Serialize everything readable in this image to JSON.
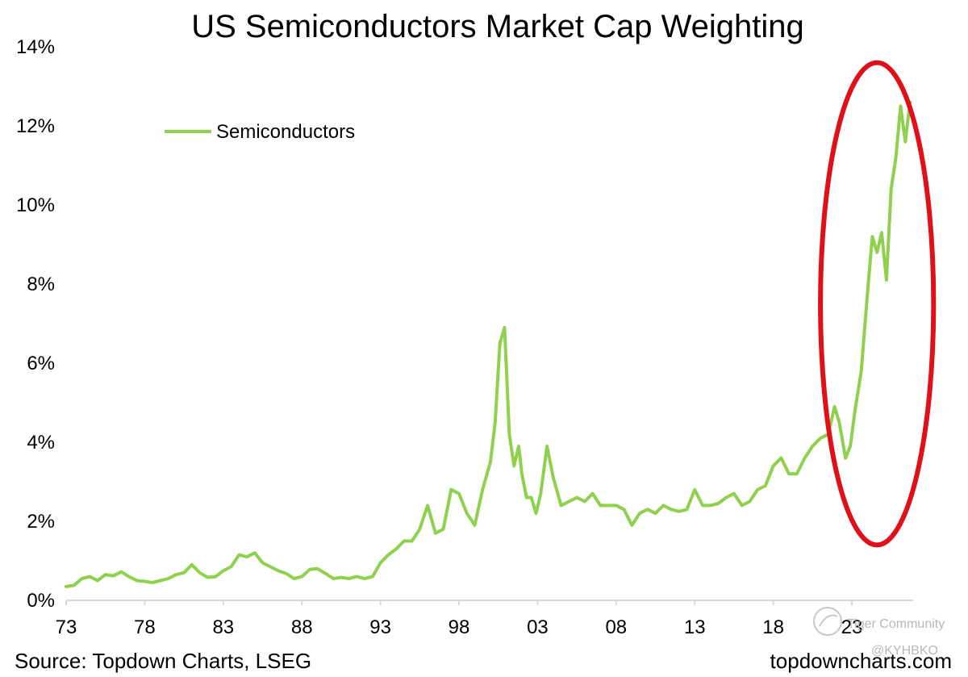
{
  "chart_data": {
    "type": "line",
    "title": "US Semiconductors Market Cap Weighting",
    "xlabel": "",
    "ylabel": "",
    "x_tick_labels": [
      "73",
      "78",
      "83",
      "88",
      "93",
      "98",
      "03",
      "08",
      "13",
      "18",
      "23"
    ],
    "x_tick_years": [
      1973,
      1978,
      1983,
      1988,
      1993,
      1998,
      2003,
      2008,
      2013,
      2018,
      2023
    ],
    "xlim": [
      1973,
      2026.9
    ],
    "y_tick_labels": [
      "0%",
      "2%",
      "4%",
      "6%",
      "8%",
      "10%",
      "12%",
      "14%"
    ],
    "y_tick_values": [
      0,
      2,
      4,
      6,
      8,
      10,
      12,
      14
    ],
    "ylim": [
      0,
      14
    ],
    "grid": false,
    "legend_position": "top-left",
    "series": [
      {
        "name": "Semiconductors",
        "color": "#8fd14f",
        "points": [
          [
            1973.0,
            0.35
          ],
          [
            1973.5,
            0.38
          ],
          [
            1974.0,
            0.55
          ],
          [
            1974.5,
            0.6
          ],
          [
            1975.0,
            0.5
          ],
          [
            1975.5,
            0.65
          ],
          [
            1976.0,
            0.62
          ],
          [
            1976.5,
            0.72
          ],
          [
            1977.0,
            0.6
          ],
          [
            1977.5,
            0.5
          ],
          [
            1978.0,
            0.48
          ],
          [
            1978.5,
            0.45
          ],
          [
            1979.0,
            0.5
          ],
          [
            1979.5,
            0.55
          ],
          [
            1980.0,
            0.65
          ],
          [
            1980.5,
            0.7
          ],
          [
            1981.0,
            0.9
          ],
          [
            1981.5,
            0.7
          ],
          [
            1982.0,
            0.58
          ],
          [
            1982.5,
            0.6
          ],
          [
            1983.0,
            0.75
          ],
          [
            1983.5,
            0.85
          ],
          [
            1984.0,
            1.15
          ],
          [
            1984.5,
            1.1
          ],
          [
            1985.0,
            1.2
          ],
          [
            1985.5,
            0.95
          ],
          [
            1986.0,
            0.85
          ],
          [
            1986.5,
            0.75
          ],
          [
            1987.0,
            0.68
          ],
          [
            1987.5,
            0.55
          ],
          [
            1988.0,
            0.6
          ],
          [
            1988.5,
            0.78
          ],
          [
            1989.0,
            0.8
          ],
          [
            1989.5,
            0.68
          ],
          [
            1990.0,
            0.55
          ],
          [
            1990.5,
            0.58
          ],
          [
            1991.0,
            0.55
          ],
          [
            1991.5,
            0.6
          ],
          [
            1992.0,
            0.55
          ],
          [
            1992.5,
            0.6
          ],
          [
            1993.0,
            0.95
          ],
          [
            1993.5,
            1.15
          ],
          [
            1994.0,
            1.3
          ],
          [
            1994.5,
            1.5
          ],
          [
            1995.0,
            1.5
          ],
          [
            1995.5,
            1.8
          ],
          [
            1996.0,
            2.4
          ],
          [
            1996.5,
            1.7
          ],
          [
            1997.0,
            1.8
          ],
          [
            1997.5,
            2.8
          ],
          [
            1998.0,
            2.7
          ],
          [
            1998.5,
            2.2
          ],
          [
            1999.0,
            1.9
          ],
          [
            1999.5,
            2.8
          ],
          [
            2000.0,
            3.5
          ],
          [
            2000.3,
            4.5
          ],
          [
            2000.6,
            6.5
          ],
          [
            2000.9,
            6.9
          ],
          [
            2001.2,
            4.2
          ],
          [
            2001.5,
            3.4
          ],
          [
            2001.8,
            3.9
          ],
          [
            2002.0,
            3.2
          ],
          [
            2002.3,
            2.6
          ],
          [
            2002.6,
            2.6
          ],
          [
            2002.9,
            2.2
          ],
          [
            2003.2,
            2.7
          ],
          [
            2003.6,
            3.9
          ],
          [
            2004.0,
            3.1
          ],
          [
            2004.5,
            2.4
          ],
          [
            2005.0,
            2.5
          ],
          [
            2005.5,
            2.6
          ],
          [
            2006.0,
            2.5
          ],
          [
            2006.5,
            2.7
          ],
          [
            2007.0,
            2.4
          ],
          [
            2007.5,
            2.4
          ],
          [
            2008.0,
            2.4
          ],
          [
            2008.5,
            2.3
          ],
          [
            2009.0,
            1.9
          ],
          [
            2009.5,
            2.2
          ],
          [
            2010.0,
            2.3
          ],
          [
            2010.5,
            2.2
          ],
          [
            2011.0,
            2.4
          ],
          [
            2011.5,
            2.3
          ],
          [
            2012.0,
            2.25
          ],
          [
            2012.5,
            2.3
          ],
          [
            2013.0,
            2.8
          ],
          [
            2013.5,
            2.4
          ],
          [
            2014.0,
            2.4
          ],
          [
            2014.5,
            2.45
          ],
          [
            2015.0,
            2.6
          ],
          [
            2015.5,
            2.7
          ],
          [
            2016.0,
            2.4
          ],
          [
            2016.5,
            2.5
          ],
          [
            2017.0,
            2.8
          ],
          [
            2017.5,
            2.9
          ],
          [
            2018.0,
            3.4
          ],
          [
            2018.5,
            3.6
          ],
          [
            2019.0,
            3.2
          ],
          [
            2019.5,
            3.2
          ],
          [
            2020.0,
            3.6
          ],
          [
            2020.5,
            3.9
          ],
          [
            2021.0,
            4.1
          ],
          [
            2021.5,
            4.2
          ],
          [
            2021.9,
            4.9
          ],
          [
            2022.2,
            4.5
          ],
          [
            2022.6,
            3.6
          ],
          [
            2022.9,
            3.9
          ],
          [
            2023.2,
            4.8
          ],
          [
            2023.6,
            5.8
          ],
          [
            2024.0,
            7.8
          ],
          [
            2024.3,
            9.2
          ],
          [
            2024.6,
            8.8
          ],
          [
            2024.9,
            9.3
          ],
          [
            2025.2,
            8.1
          ],
          [
            2025.5,
            10.4
          ],
          [
            2025.8,
            11.2
          ],
          [
            2026.1,
            12.5
          ],
          [
            2026.4,
            11.6
          ],
          [
            2026.7,
            12.6
          ]
        ]
      }
    ],
    "annotations": [
      {
        "type": "ellipse",
        "color": "#e0101a",
        "center_x": 2024.6,
        "center_y": 7.5,
        "rx_years": 3.6,
        "ry_value": 6.1
      }
    ]
  },
  "source_text": "Source: Topdown Charts, LSEG",
  "site_text": "topdowncharts.com",
  "watermark": {
    "community_text": "Tiger Community",
    "user_text": "@KYHBKO"
  }
}
